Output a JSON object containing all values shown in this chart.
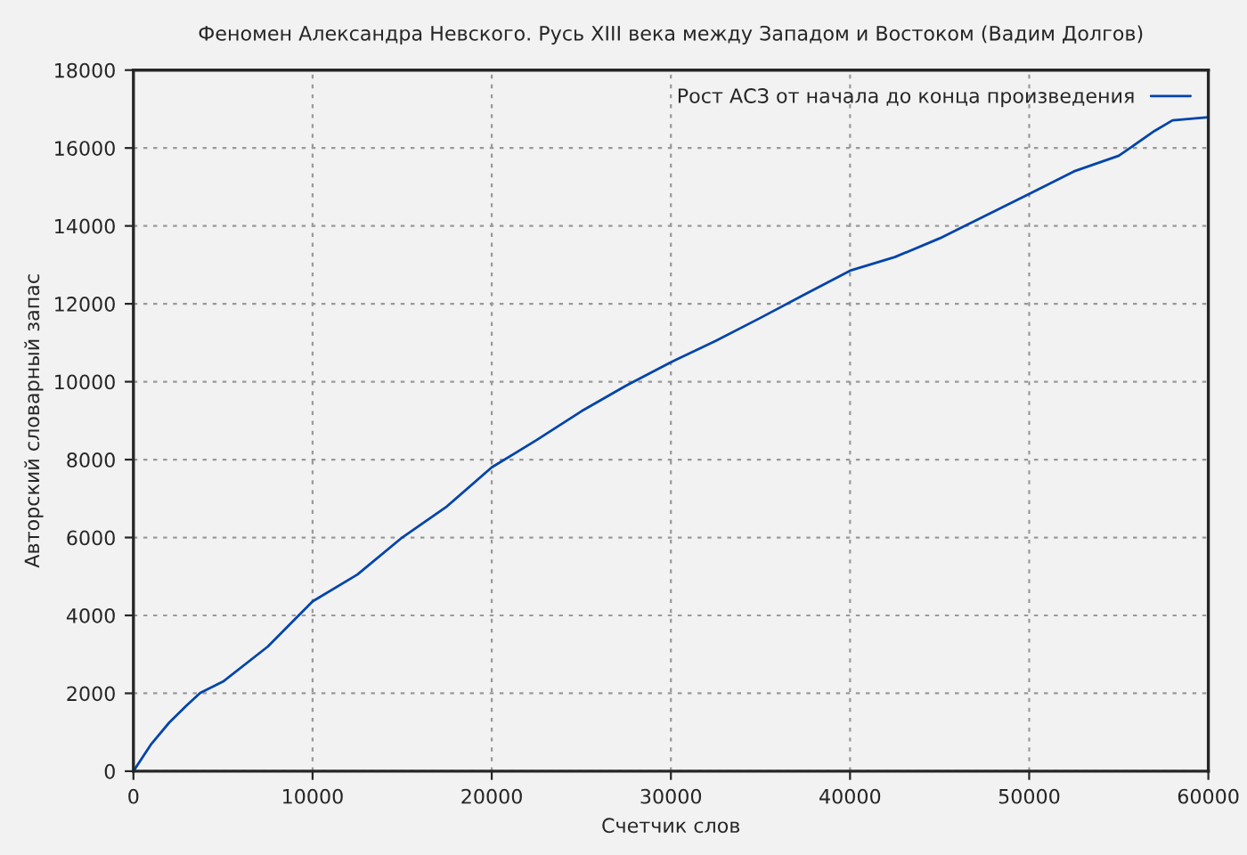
{
  "chart_data": {
    "type": "line",
    "title": "Феномен Александра Невского. Русь XIII века между Западом и Востоком (Вадим Долгов)",
    "xlabel": "Счетчик слов",
    "ylabel": "Авторский словарный запас",
    "x": [
      0,
      1000,
      2000,
      3000,
      3730,
      5000,
      7500,
      10000,
      12500,
      15000,
      17500,
      20000,
      22500,
      25000,
      27500,
      30000,
      32500,
      35000,
      37500,
      40000,
      42500,
      45000,
      47500,
      50000,
      52500,
      55000,
      57000,
      58000,
      60000
    ],
    "series": [
      {
        "name": "Рост АСЗ от начала до конца произведения",
        "color": "#0044aa",
        "values": [
          0,
          700,
          1250,
          1700,
          2010,
          2300,
          3200,
          4360,
          5050,
          6000,
          6800,
          7800,
          8500,
          9240,
          9900,
          10500,
          11050,
          11640,
          12250,
          12850,
          13200,
          13680,
          14250,
          14820,
          15400,
          15800,
          16440,
          16710,
          16790
        ]
      }
    ],
    "xlim": [
      0,
      60000
    ],
    "xticks": [
      0,
      10000,
      20000,
      30000,
      40000,
      50000,
      60000
    ],
    "ylim": [
      0,
      18000
    ],
    "yticks": [
      0,
      2000,
      4000,
      6000,
      8000,
      10000,
      12000,
      14000,
      16000,
      18000
    ],
    "grid": true,
    "legend": "top right",
    "line_style": "solid",
    "marker": "none"
  }
}
